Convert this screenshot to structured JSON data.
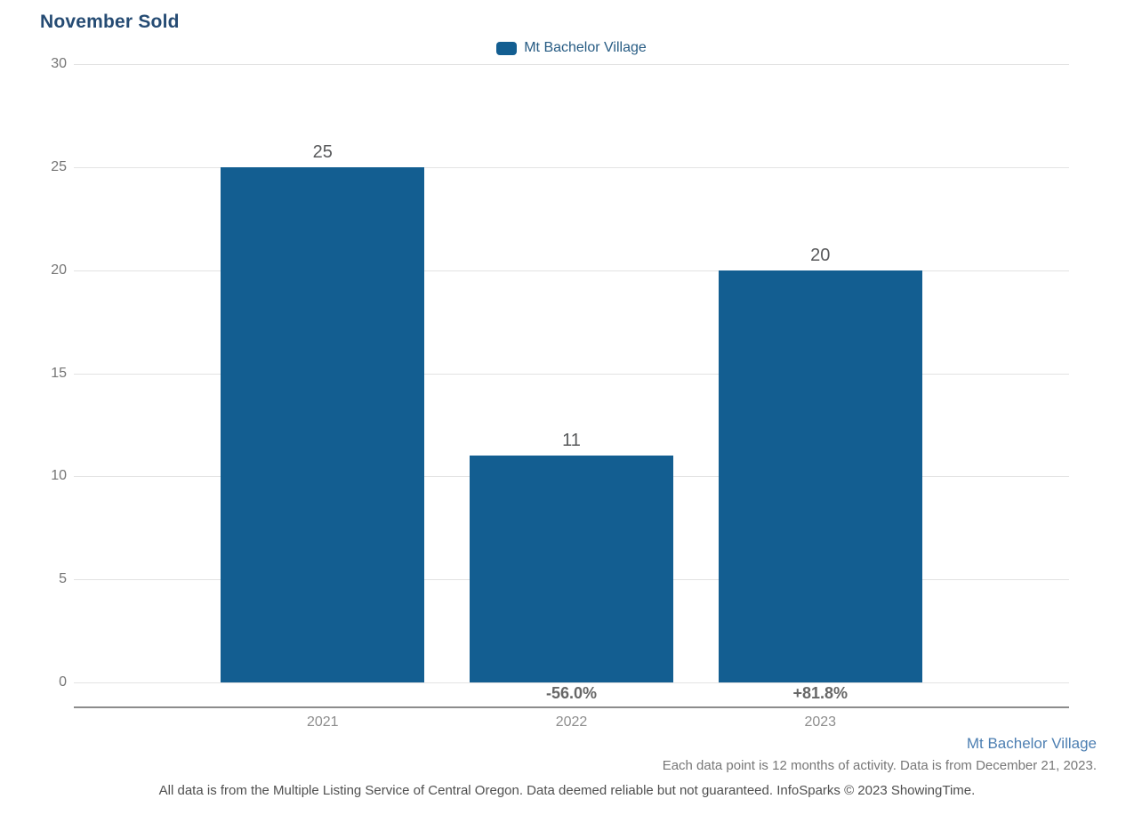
{
  "title": "November Sold",
  "legend": {
    "label": "Mt Bachelor Village"
  },
  "chart_data": {
    "type": "bar",
    "title": "November Sold",
    "categories": [
      "2021",
      "2022",
      "2023"
    ],
    "series": [
      {
        "name": "Mt Bachelor Village",
        "values": [
          25,
          11,
          20
        ]
      }
    ],
    "value_labels": [
      "25",
      "11",
      "20"
    ],
    "pct_change_labels": [
      "",
      "-56.0%",
      "+81.8%"
    ],
    "xlabel": "",
    "ylabel": "",
    "ylim": [
      0,
      30
    ],
    "yticks": [
      0,
      5,
      10,
      15,
      20,
      25,
      30
    ],
    "grid": true,
    "legend_position": "top-center",
    "bar_color": "#135E91"
  },
  "colors": {
    "bar": "#135E91",
    "title_text": "#254B73",
    "legend_text": "#265B83",
    "footer_series_text": "#4D7FB2"
  },
  "footer": {
    "series_label": "Mt Bachelor Village",
    "data_note": "Each data point is 12 months of activity. Data is from December 21, 2023.",
    "disclaimer": "All data is from the Multiple Listing Service of Central Oregon. Data deemed reliable but not guaranteed. InfoSparks © 2023 ShowingTime."
  }
}
